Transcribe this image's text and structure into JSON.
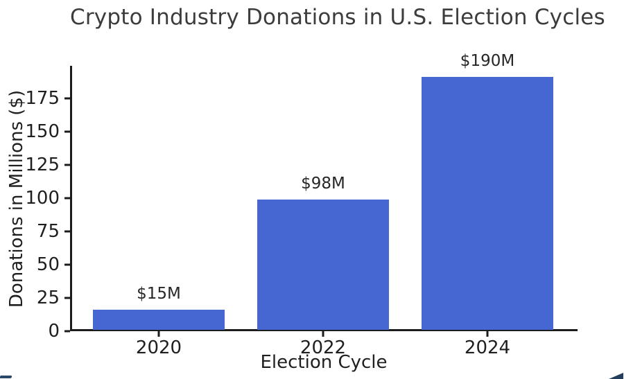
{
  "title": "Crypto Industry Donations in U.S. Election Cycles",
  "colors": {
    "bar": "#4667d2",
    "axis": "#1c1c1c",
    "tick_text": "#1f1f1f",
    "title_text": "#3c3c3c",
    "annotation_text": "#262626",
    "background": "#ffffff"
  },
  "chart_data": {
    "type": "bar",
    "title": "Crypto Industry Donations in U.S. Election Cycles",
    "categories": [
      "2020",
      "2022",
      "2024"
    ],
    "values": [
      15,
      98,
      190
    ],
    "bar_labels": [
      "$15M",
      "$98M",
      "$190M"
    ],
    "xlabel": "Election Cycle",
    "ylabel": "Donations in Millions ($)",
    "yticks": [
      0,
      25,
      50,
      75,
      100,
      125,
      150,
      175
    ],
    "ylim": [
      0,
      199.5
    ],
    "grid": false,
    "legend": "none",
    "bar_color": "#4667d2",
    "spines": [
      "left",
      "bottom"
    ]
  }
}
